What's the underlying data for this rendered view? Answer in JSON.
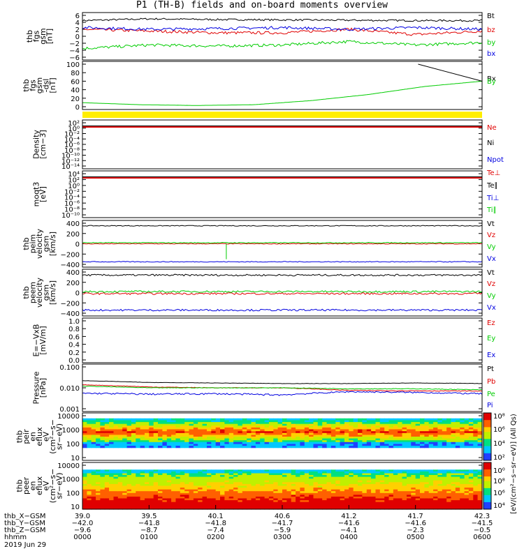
{
  "title": "P1  (TH-B) fields and on-board moments overview",
  "colors": {
    "black": "#000000",
    "red": "#e00000",
    "green": "#00cc00",
    "blue": "#0000e0",
    "yellow": "#ffee00"
  },
  "chart_data": [
    {
      "type": "line",
      "ylabel": [
        "thb",
        "fgs",
        "gsm",
        "[nT]"
      ],
      "yticks": [
        "6",
        "4",
        "2",
        "0",
        "−2",
        "−4",
        "−6"
      ],
      "ylim": [
        -6,
        6
      ],
      "series": [
        {
          "name": "Bt",
          "color": "black",
          "values": [
            4.5,
            5.0,
            4.8,
            4.7,
            4.6,
            4.5,
            4.5
          ]
        },
        {
          "name": "bz",
          "color": "red",
          "values": [
            2.0,
            1.5,
            1.0,
            1.0,
            2.0,
            0.5,
            1.5
          ]
        },
        {
          "name": "by",
          "color": "green",
          "values": [
            -3.5,
            -2.5,
            -2.8,
            -2.5,
            -1.5,
            -2.5,
            -1.8
          ]
        },
        {
          "name": "bx",
          "color": "blue",
          "values": [
            2.5,
            2.0,
            2.2,
            2.5,
            2.0,
            2.5,
            2.0
          ]
        }
      ]
    },
    {
      "type": "line",
      "ylabel": [
        "thb",
        "fgs",
        "gsm",
        "-dsl",
        "[nT]"
      ],
      "yticks": [
        "100",
        "80",
        "60",
        "40",
        "20",
        "0"
      ],
      "ylim": [
        -5,
        100
      ],
      "series": [
        {
          "name": "Bx",
          "color": "black",
          "values": [
            null,
            null,
            null,
            null,
            null,
            null,
            100,
            60
          ]
        },
        {
          "name": "By",
          "color": "green",
          "values": [
            5,
            0,
            -2,
            0,
            10,
            25,
            45,
            58
          ]
        }
      ]
    },
    {
      "type": "line",
      "ylabel": [
        "Density",
        "[cm−3]"
      ],
      "yticks": [
        "10²",
        "10⁰",
        "10⁻²",
        "10⁻⁴",
        "10⁻⁶",
        "10⁻⁸",
        "10⁻¹⁰",
        "10⁻¹²",
        "10⁻¹⁴"
      ],
      "series": [
        {
          "name": "Ne",
          "color": "red",
          "values": [
            0.1
          ]
        },
        {
          "name": "Ni",
          "color": "black",
          "values": [
            0.1
          ]
        },
        {
          "name": "Npot",
          "color": "blue",
          "values": []
        }
      ]
    },
    {
      "type": "line",
      "ylabel": [
        "moqt3",
        "[eV]"
      ],
      "yticks": [
        "10⁴",
        "10²",
        "10⁰",
        "10⁻²",
        "10⁻⁴",
        "10⁻⁶",
        "10⁻⁸",
        "10⁻¹⁰"
      ],
      "series": [
        {
          "name": "Te⊥",
          "color": "red",
          "values": [
            100
          ]
        },
        {
          "name": "Te∥",
          "color": "black",
          "values": [
            100
          ]
        },
        {
          "name": "Ti⊥",
          "color": "blue",
          "values": []
        },
        {
          "name": "Ti∥",
          "color": "green",
          "values": []
        }
      ]
    },
    {
      "type": "line",
      "ylabel": [
        "thb",
        "peim",
        "velocity",
        "gsm",
        "[km/s]"
      ],
      "yticks": [
        "400",
        "200",
        "0",
        "−200",
        "−400"
      ],
      "ylim": [
        -400,
        400
      ],
      "series": [
        {
          "name": "Vt",
          "color": "black",
          "values": [
            350
          ]
        },
        {
          "name": "Vz",
          "color": "red",
          "values": [
            0
          ]
        },
        {
          "name": "Vy",
          "color": "green",
          "values": [
            20
          ]
        },
        {
          "name": "Vx",
          "color": "blue",
          "values": [
            -350
          ]
        }
      ]
    },
    {
      "type": "line",
      "ylabel": [
        "thb",
        "peem",
        "velocity",
        "gsm",
        "[km/s]"
      ],
      "yticks": [
        "400",
        "200",
        "0",
        "−200",
        "−400"
      ],
      "ylim": [
        -400,
        400
      ],
      "series": [
        {
          "name": "Vt",
          "color": "black",
          "values": [
            340
          ]
        },
        {
          "name": "Vz",
          "color": "red",
          "values": [
            -20
          ]
        },
        {
          "name": "Vy",
          "color": "green",
          "values": [
            20
          ]
        },
        {
          "name": "Vx",
          "color": "blue",
          "values": [
            -340
          ]
        }
      ]
    },
    {
      "type": "line",
      "ylabel": [
        "E=−VxB",
        "[mV/m]"
      ],
      "yticks": [
        "1.0",
        "0.8",
        "0.6",
        "0.4",
        "0.2",
        "0.0"
      ],
      "ylim": [
        0,
        1
      ],
      "series": [
        {
          "name": "Ez",
          "color": "red",
          "values": []
        },
        {
          "name": "Ey",
          "color": "green",
          "values": []
        },
        {
          "name": "Ex",
          "color": "blue",
          "values": []
        }
      ]
    },
    {
      "type": "line",
      "ylabel": [
        "Pressure",
        "[nPa]"
      ],
      "yticks": [
        "0.100",
        "0.010",
        "0.001"
      ],
      "yscale": "log",
      "ylim": [
        0.001,
        0.1
      ],
      "series": [
        {
          "name": "Pt",
          "color": "black",
          "values": [
            0.022,
            0.018,
            0.017,
            0.016,
            0.016,
            0.017,
            0.016
          ]
        },
        {
          "name": "Pb",
          "color": "red",
          "values": [
            0.014,
            0.011,
            0.01,
            0.01,
            0.0075,
            0.0072,
            0.007
          ]
        },
        {
          "name": "Pe",
          "color": "green",
          "values": [
            0.012,
            0.01,
            0.01,
            0.01,
            0.009,
            0.009,
            0.008
          ]
        },
        {
          "name": "Pi",
          "color": "blue",
          "values": [
            0.0055,
            0.005,
            0.0052,
            0.0046,
            0.0065,
            0.006,
            0.0052
          ]
        }
      ]
    },
    {
      "type": "heatmap",
      "ylabel": [
        "thb",
        "peir",
        "en",
        "eflux",
        "eV",
        "(cm²−s−",
        "sr−eV)"
      ],
      "yticks": [
        "10000",
        "1000",
        "100",
        "10"
      ]
    },
    {
      "type": "heatmap",
      "ylabel": [
        "thb",
        "peer",
        "en",
        "eflux",
        "eV",
        "(cm²−s−",
        "sr−eV)"
      ],
      "yticks": [
        "10000",
        "1000",
        "100",
        "10"
      ]
    }
  ],
  "colorbar": {
    "label": "[eV/(cm²−s−sr−eV)] (All Qs)",
    "ticks": [
      "10⁸",
      "10⁶",
      "10⁴",
      "10²",
      "10⁰",
      "10⁸",
      "10⁶",
      "10⁴",
      "10²"
    ]
  },
  "xaxis": {
    "rows": [
      {
        "label": "thb_X−GSM",
        "values": [
          "39.0",
          "39.5",
          "40.1",
          "40.6",
          "41.2",
          "41.7",
          "42.3"
        ]
      },
      {
        "label": "thb_Y−GSM",
        "values": [
          "−42.0",
          "−41.8",
          "−41.8",
          "−41.7",
          "−41.6",
          "−41.6",
          "−41.5"
        ]
      },
      {
        "label": "thb_Z−GSM",
        "values": [
          "−9.6",
          "−8.7",
          "−7.4",
          "−5.9",
          "−4.1",
          "−2.3",
          "−0.5"
        ]
      },
      {
        "label": "hhmm",
        "values": [
          "0000",
          "0100",
          "0200",
          "0300",
          "0400",
          "0500",
          "0600"
        ]
      }
    ],
    "date": "2019 Jun 29"
  }
}
